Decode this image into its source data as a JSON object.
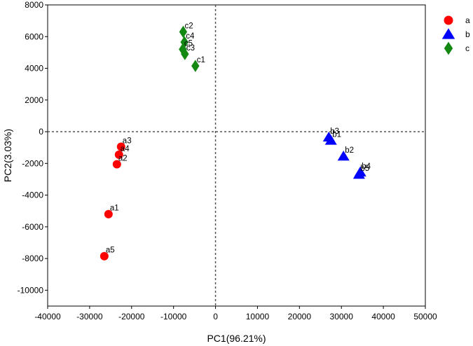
{
  "chart_data": {
    "type": "scatter",
    "xlabel": "PC1(96.21%)",
    "ylabel": "PC2(3.03%)",
    "xlim": [
      -40000,
      50000
    ],
    "ylim": [
      -11000,
      8000
    ],
    "xticks": [
      -40000,
      -30000,
      -20000,
      -10000,
      0,
      10000,
      20000,
      30000,
      40000,
      50000
    ],
    "yticks": [
      -10000,
      -8000,
      -6000,
      -4000,
      -2000,
      0,
      2000,
      4000,
      6000,
      8000
    ],
    "zero_lines": true,
    "legend_position": "top-right",
    "series": [
      {
        "name": "a",
        "marker": "circle",
        "color": "#ff0000",
        "points": [
          {
            "label": "a1",
            "x": -25500,
            "y": -5200
          },
          {
            "label": "a2",
            "x": -23500,
            "y": -2050
          },
          {
            "label": "a3",
            "x": -22500,
            "y": -950
          },
          {
            "label": "a4",
            "x": -23000,
            "y": -1450
          },
          {
            "label": "a5",
            "x": -26500,
            "y": -7850
          }
        ]
      },
      {
        "name": "b",
        "marker": "triangle",
        "color": "#0000ff",
        "points": [
          {
            "label": "b1",
            "x": 27500,
            "y": -550
          },
          {
            "label": "b2",
            "x": 30500,
            "y": -1550
          },
          {
            "label": "b3",
            "x": 27000,
            "y": -350
          },
          {
            "label": "b4",
            "x": 34500,
            "y": -2550
          },
          {
            "label": "b5",
            "x": 34200,
            "y": -2700
          }
        ]
      },
      {
        "name": "c",
        "marker": "diamond",
        "color": "#138813",
        "points": [
          {
            "label": "c1",
            "x": -4800,
            "y": 4150
          },
          {
            "label": "c2",
            "x": -7700,
            "y": 6300
          },
          {
            "label": "c3",
            "x": -7300,
            "y": 4900
          },
          {
            "label": "c4",
            "x": -7400,
            "y": 5650
          },
          {
            "label": "c5",
            "x": -7800,
            "y": 5200
          }
        ]
      }
    ]
  }
}
